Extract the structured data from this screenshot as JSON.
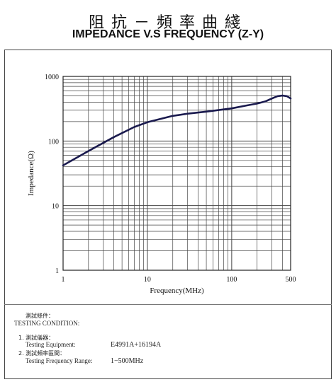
{
  "title_cn": "阻抗－頻率曲綫",
  "title_en": "IMPEDANCE V.S FREQUENCY (Z-Y)",
  "chart_data": {
    "type": "line",
    "x_scale": "log",
    "y_scale": "log",
    "xlim": [
      1,
      500
    ],
    "ylim": [
      1,
      1000
    ],
    "xlabel": "Frequency(MHz)",
    "ylabel": "Impedance(Ω)",
    "x_ticks": [
      "1",
      "10",
      "100",
      "500"
    ],
    "y_ticks": [
      "1",
      "10",
      "100",
      "1000"
    ],
    "grid": true,
    "line_color": "#1a1a4e",
    "series": [
      {
        "x": [
          1,
          2,
          4,
          7,
          10,
          20,
          30,
          50,
          100,
          150,
          200,
          250,
          300,
          350,
          400,
          450,
          500
        ],
        "y": [
          42,
          70,
          115,
          165,
          195,
          245,
          265,
          285,
          320,
          355,
          380,
          410,
          455,
          495,
          505,
          495,
          455
        ]
      }
    ]
  },
  "conditions": {
    "header_cn": "測試條件：",
    "header_en": "TESTING CONDITION:",
    "items": [
      {
        "label_cn": "1. 測試儀器：",
        "label_en": "Testing Equipment:",
        "value": "E4991A+16194A"
      },
      {
        "label_cn": "2. 測試頻率區間：",
        "label_en": "Testing Frequency Range:",
        "value": "1−500MHz"
      }
    ]
  }
}
